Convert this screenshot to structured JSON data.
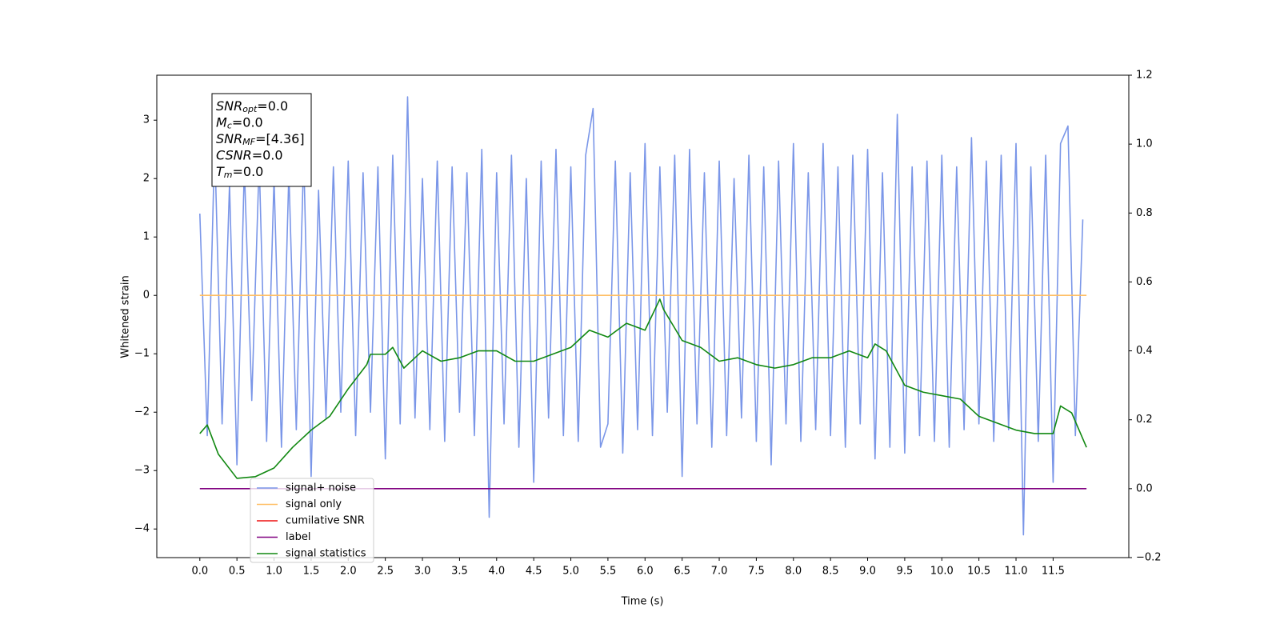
{
  "chart_data": {
    "type": "line",
    "xlabel": "Time (s)",
    "ylabel": "Whitened strain",
    "annotation": [
      {
        "text": "SNR",
        "sub": "opt",
        "value": "=0.0"
      },
      {
        "text": "M",
        "sub": "c",
        "value": "=0.0"
      },
      {
        "text": "SNR",
        "sub": "MF",
        "value": "=[4.36]"
      },
      {
        "text": "CSNR",
        "value": "=0.0"
      },
      {
        "text": "T",
        "sub": "m",
        "value": "=0.0"
      }
    ],
    "xlim": [
      -0.58,
      12.52
    ],
    "ylim": [
      -4.49,
      3.77
    ],
    "y2lim": [
      -0.2,
      1.2
    ],
    "xticks": [
      {
        "value": 0,
        "label": "0.0"
      },
      {
        "value": 0.5,
        "label": "0.5"
      },
      {
        "value": 1,
        "label": "1.0"
      },
      {
        "value": 1.5,
        "label": "1.5"
      },
      {
        "value": 2,
        "label": "2.0"
      },
      {
        "value": 2.5,
        "label": "2.5"
      },
      {
        "value": 3,
        "label": "3.0"
      },
      {
        "value": 3.5,
        "label": "3.5"
      },
      {
        "value": 4,
        "label": "4.0"
      },
      {
        "value": 4.5,
        "label": "4.5"
      },
      {
        "value": 5,
        "label": "5.0"
      },
      {
        "value": 5.5,
        "label": "5.5"
      },
      {
        "value": 6,
        "label": "6.0"
      },
      {
        "value": 6.5,
        "label": "6.5"
      },
      {
        "value": 7,
        "label": "7.0"
      },
      {
        "value": 7.5,
        "label": "7.5"
      },
      {
        "value": 8,
        "label": "8.0"
      },
      {
        "value": 8.5,
        "label": "8.5"
      },
      {
        "value": 9,
        "label": "9.0"
      },
      {
        "value": 9.5,
        "label": "9.5"
      },
      {
        "value": 10,
        "label": "10.0"
      },
      {
        "value": 10.5,
        "label": "10.5"
      },
      {
        "value": 11,
        "label": "11.0"
      },
      {
        "value": 11.5,
        "label": "11.5"
      }
    ],
    "yticks": [
      {
        "value": -4,
        "label": "−4"
      },
      {
        "value": -3,
        "label": "−3"
      },
      {
        "value": -2,
        "label": "−2"
      },
      {
        "value": -1,
        "label": "−1"
      },
      0,
      1,
      2,
      3
    ],
    "y2ticks": [
      {
        "value": -0.2,
        "label": "−0.2"
      },
      {
        "value": 0,
        "label": "0.0"
      },
      {
        "value": 0.2,
        "label": "0.2"
      },
      {
        "value": 0.4,
        "label": "0.4"
      },
      {
        "value": 0.6,
        "label": "0.6"
      },
      {
        "value": 0.8,
        "label": "0.8"
      },
      {
        "value": 1,
        "label": "1.0"
      },
      {
        "value": 1.2,
        "label": "1.2"
      }
    ],
    "legend": "lower left",
    "series": [
      {
        "name": "signal+ noise",
        "color": "#7a96e8",
        "x": [
          0,
          0.1,
          0.2,
          0.3,
          0.4,
          0.5,
          0.6,
          0.7,
          0.8,
          0.9,
          1,
          1.1,
          1.2,
          1.3,
          1.4,
          1.5,
          1.6,
          1.7,
          1.8,
          1.9,
          2,
          2.1,
          2.2,
          2.3,
          2.4,
          2.5,
          2.6,
          2.7,
          2.8,
          2.9,
          3,
          3.1,
          3.2,
          3.3,
          3.4,
          3.5,
          3.6,
          3.7,
          3.8,
          3.9,
          4,
          4.1,
          4.2,
          4.3,
          4.4,
          4.5,
          4.6,
          4.7,
          4.8,
          4.9,
          5,
          5.1,
          5.2,
          5.3,
          5.4,
          5.5,
          5.6,
          5.7,
          5.8,
          5.9,
          6,
          6.1,
          6.2,
          6.3,
          6.4,
          6.5,
          6.6,
          6.7,
          6.8,
          6.9,
          7,
          7.1,
          7.2,
          7.3,
          7.4,
          7.5,
          7.6,
          7.7,
          7.8,
          7.9,
          8,
          8.1,
          8.2,
          8.3,
          8.4,
          8.5,
          8.6,
          8.7,
          8.8,
          8.9,
          9,
          9.1,
          9.2,
          9.3,
          9.4,
          9.5,
          9.6,
          9.7,
          9.8,
          9.9,
          10,
          10.1,
          10.2,
          10.3,
          10.4,
          10.5,
          10.6,
          10.7,
          10.8,
          10.9,
          11,
          11.1,
          11.2,
          11.3,
          11.4,
          11.5,
          11.6,
          11.7,
          11.8,
          11.9
        ],
        "values": [
          1.4,
          -2.4,
          2.6,
          -2.2,
          1.9,
          -2.9,
          2.2,
          -1.8,
          2.3,
          -2.5,
          2.0,
          -2.6,
          2.1,
          -2.3,
          2.4,
          -3.1,
          1.8,
          -2.1,
          2.2,
          -2.0,
          2.3,
          -2.4,
          2.1,
          -2.0,
          2.2,
          -2.8,
          2.4,
          -2.2,
          3.4,
          -2.1,
          2.0,
          -2.3,
          2.3,
          -2.5,
          2.2,
          -2.0,
          2.1,
          -2.4,
          2.5,
          -3.8,
          2.1,
          -2.2,
          2.4,
          -2.6,
          2.0,
          -3.2,
          2.3,
          -2.1,
          2.5,
          -2.4,
          2.2,
          -2.5,
          2.4,
          3.2,
          -2.6,
          -2.2,
          2.3,
          -2.7,
          2.1,
          -2.3,
          2.6,
          -2.4,
          2.2,
          -2.0,
          2.4,
          -3.1,
          2.5,
          -2.2,
          2.1,
          -2.6,
          2.3,
          -2.4,
          2.0,
          -2.1,
          2.4,
          -2.5,
          2.2,
          -2.9,
          2.3,
          -2.2,
          2.6,
          -2.5,
          2.1,
          -2.3,
          2.6,
          -2.4,
          2.2,
          -2.6,
          2.4,
          -2.2,
          2.5,
          -2.8,
          2.1,
          -2.6,
          3.1,
          -2.7,
          2.2,
          -2.4,
          2.3,
          -2.5,
          2.4,
          -2.6,
          2.2,
          -2.3,
          2.7,
          -2.2,
          2.3,
          -2.5,
          2.4,
          -2.3,
          2.6,
          -4.1,
          2.2,
          -2.5,
          2.4,
          -3.2,
          2.6,
          2.9,
          -2.4,
          1.3
        ]
      },
      {
        "name": "signal only",
        "color": "#ffbf66",
        "x": [
          0,
          11.95
        ],
        "values": [
          0,
          0
        ]
      },
      {
        "name": "cumilative SNR",
        "color": "#ee1111",
        "x": [],
        "values": []
      },
      {
        "name": "label",
        "color": "#800080",
        "axis": "y2",
        "x": [
          0,
          11.95
        ],
        "values": [
          0,
          0
        ]
      },
      {
        "name": "signal statistics",
        "color": "#118811",
        "axis": "y2",
        "x": [
          0,
          0.1,
          0.25,
          0.5,
          0.75,
          1,
          1.25,
          1.5,
          1.75,
          2,
          2.25,
          2.3,
          2.5,
          2.6,
          2.75,
          3,
          3.25,
          3.5,
          3.75,
          4,
          4.25,
          4.5,
          4.75,
          5,
          5.25,
          5.5,
          5.75,
          6,
          6.2,
          6.25,
          6.5,
          6.75,
          7,
          7.25,
          7.5,
          7.75,
          8,
          8.25,
          8.5,
          8.75,
          9,
          9.1,
          9.25,
          9.5,
          9.75,
          10,
          10.25,
          10.5,
          10.75,
          11,
          11.25,
          11.5,
          11.6,
          11.75,
          11.95
        ],
        "values": [
          0.16,
          0.185,
          0.1,
          0.03,
          0.035,
          0.06,
          0.12,
          0.17,
          0.21,
          0.29,
          0.36,
          0.39,
          0.39,
          0.41,
          0.35,
          0.4,
          0.37,
          0.38,
          0.4,
          0.4,
          0.37,
          0.37,
          0.39,
          0.41,
          0.46,
          0.44,
          0.48,
          0.46,
          0.55,
          0.52,
          0.43,
          0.41,
          0.37,
          0.38,
          0.36,
          0.35,
          0.36,
          0.38,
          0.38,
          0.4,
          0.38,
          0.42,
          0.4,
          0.3,
          0.28,
          0.27,
          0.26,
          0.21,
          0.19,
          0.17,
          0.16,
          0.16,
          0.24,
          0.22,
          0.12
        ]
      }
    ]
  }
}
